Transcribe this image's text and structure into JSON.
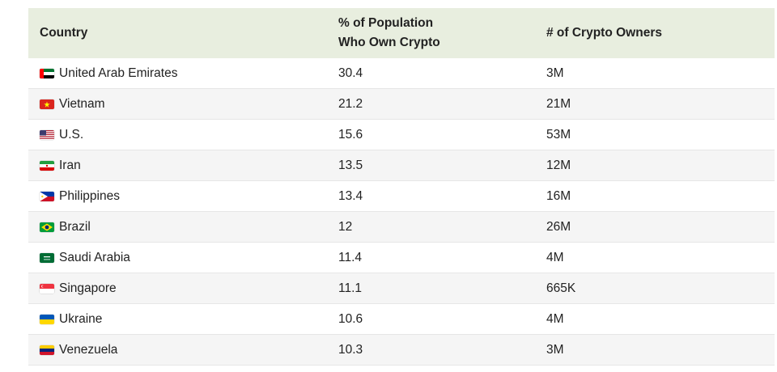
{
  "chart_data": {
    "type": "table",
    "columns": [
      "Country",
      "% of Population Who Own Crypto",
      "# of Crypto Owners"
    ],
    "header_lines": [
      "% of Population",
      "Who Own Crypto"
    ],
    "rows": [
      {
        "country": "United Arab Emirates",
        "percent": "30.4",
        "owners": "3M",
        "flag": "flag-uae-icon"
      },
      {
        "country": "Vietnam",
        "percent": "21.2",
        "owners": "21M",
        "flag": "flag-vietnam-icon"
      },
      {
        "country": "U.S.",
        "percent": "15.6",
        "owners": "53M",
        "flag": "flag-us-icon"
      },
      {
        "country": "Iran",
        "percent": "13.5",
        "owners": "12M",
        "flag": "flag-iran-icon"
      },
      {
        "country": "Philippines",
        "percent": "13.4",
        "owners": "16M",
        "flag": "flag-philippines-icon"
      },
      {
        "country": "Brazil",
        "percent": "12",
        "owners": "26M",
        "flag": "flag-brazil-icon"
      },
      {
        "country": "Saudi Arabia",
        "percent": "11.4",
        "owners": "4M",
        "flag": "flag-saudi-arabia-icon"
      },
      {
        "country": "Singapore",
        "percent": "11.1",
        "owners": "665K",
        "flag": "flag-singapore-icon"
      },
      {
        "country": "Ukraine",
        "percent": "10.6",
        "owners": "4M",
        "flag": "flag-ukraine-icon"
      },
      {
        "country": "Venezuela",
        "percent": "10.3",
        "owners": "3M",
        "flag": "flag-venezuela-icon"
      }
    ]
  },
  "colors": {
    "header_bg": "#e8eedf",
    "alt_row_bg": "#f5f5f5",
    "border": "#e6e6e6"
  }
}
